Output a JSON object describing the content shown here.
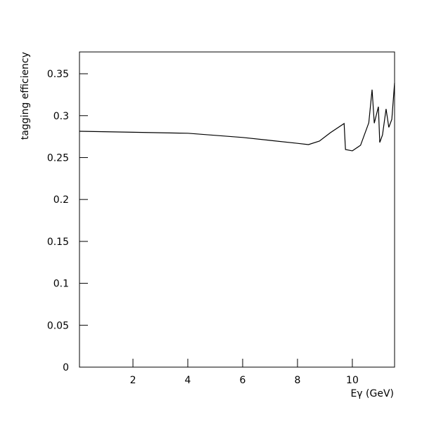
{
  "chart_data": {
    "type": "line",
    "x_label": "Eγ (GeV)",
    "y_label": "tagging efficiency",
    "x": [
      0.05,
      2,
      4,
      6,
      7,
      8,
      8.4,
      8.8,
      9.2,
      9.7,
      9.75,
      10.0,
      10.3,
      10.6,
      10.72,
      10.8,
      10.95,
      11.0,
      11.1,
      11.23,
      11.33,
      11.44,
      11.54
    ],
    "series": [
      {
        "color": "#000000",
        "values": [
          0.2814,
          0.2802,
          0.279,
          0.274,
          0.2705,
          0.267,
          0.2655,
          0.2697,
          0.2797,
          0.2906,
          0.2596,
          0.258,
          0.2647,
          0.2915,
          0.331,
          0.291,
          0.3107,
          0.268,
          0.277,
          0.308,
          0.286,
          0.2956,
          0.339
        ]
      }
    ],
    "xlim": [
      0.05,
      11.54
    ],
    "ylim": [
      0,
      0.376
    ],
    "xticks": [
      2,
      4,
      6,
      8,
      10
    ],
    "yticks": [
      0,
      0.05,
      0.1,
      0.15,
      0.2,
      0.25,
      0.3,
      0.35
    ]
  }
}
